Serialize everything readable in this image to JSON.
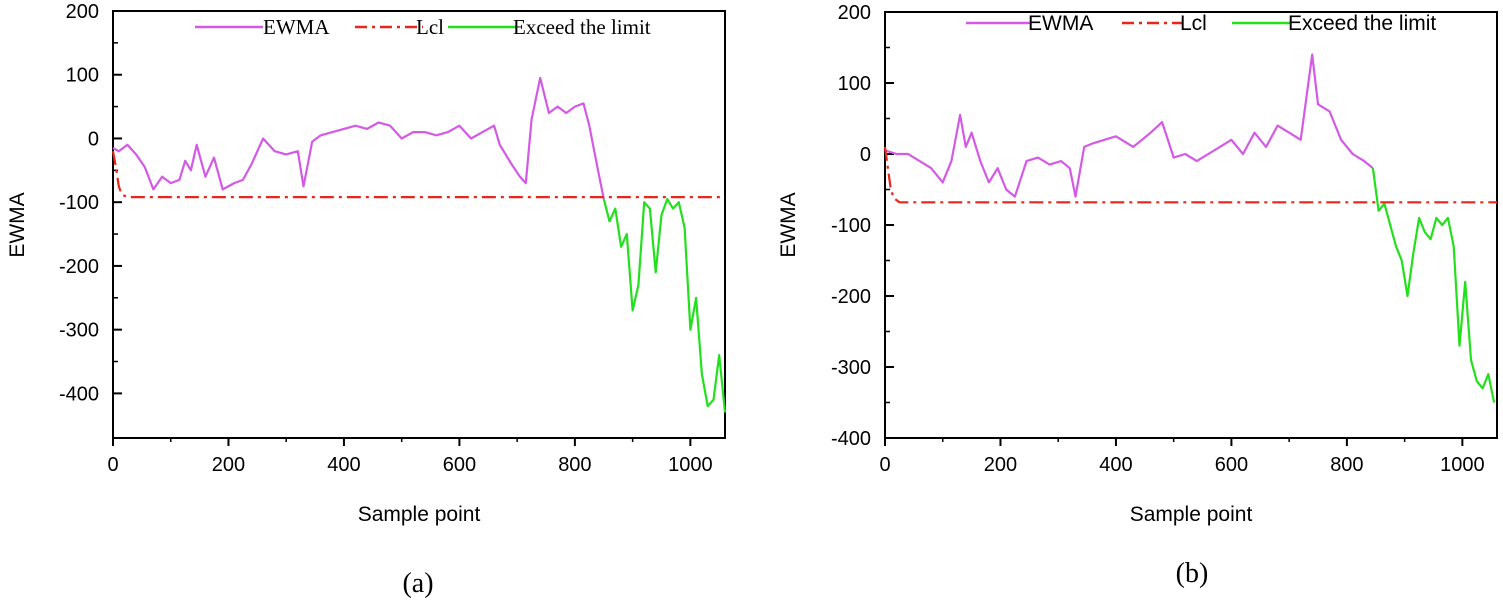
{
  "colors": {
    "ewma": "#d45ae6",
    "lcl": "#e8261c",
    "exceed": "#22e01c",
    "axis": "#000000"
  },
  "chart_data": [
    {
      "type": "line",
      "panel_label": "(a)",
      "xlabel": "Sample point",
      "ylabel": "EWMA",
      "xlim": [
        0,
        1060
      ],
      "ylim": [
        -470,
        200
      ],
      "xticks": [
        0,
        200,
        400,
        600,
        800,
        1000
      ],
      "xtick_labels": [
        "0",
        "200",
        "400",
        "600",
        "800",
        "1000"
      ],
      "yticks": [
        200,
        100,
        0,
        -100,
        -200,
        -300,
        -400
      ],
      "ytick_labels": [
        "200",
        "100",
        "0",
        "-100",
        "-200",
        "-300",
        "-400"
      ],
      "legend": {
        "position": "top-right",
        "entries": [
          "EWMA",
          "Lcl",
          "Exceed the limit"
        ]
      },
      "lcl_value": -92,
      "series": [
        {
          "name": "EWMA",
          "x": [
            0,
            10,
            25,
            40,
            55,
            70,
            85,
            100,
            115,
            125,
            135,
            145,
            160,
            175,
            190,
            210,
            225,
            240,
            260,
            280,
            300,
            320,
            330,
            345,
            360,
            380,
            400,
            420,
            440,
            460,
            480,
            500,
            520,
            540,
            560,
            580,
            600,
            620,
            640,
            660,
            670,
            690,
            705,
            715,
            725,
            740,
            755,
            770,
            785,
            800,
            815,
            825,
            840,
            850
          ],
          "values": [
            -15,
            -20,
            -10,
            -25,
            -45,
            -80,
            -60,
            -70,
            -65,
            -35,
            -50,
            -10,
            -60,
            -30,
            -80,
            -70,
            -65,
            -40,
            0,
            -20,
            -25,
            -20,
            -75,
            -5,
            5,
            10,
            15,
            20,
            15,
            25,
            20,
            0,
            10,
            10,
            5,
            10,
            20,
            0,
            10,
            20,
            -10,
            -40,
            -60,
            -70,
            30,
            95,
            40,
            50,
            40,
            50,
            55,
            20,
            -50,
            -95
          ]
        },
        {
          "name": "Exceed the limit",
          "x": [
            850,
            860,
            870,
            880,
            890,
            900,
            910,
            920,
            930,
            940,
            950,
            960,
            970,
            980,
            990,
            1000,
            1010,
            1020,
            1030,
            1040,
            1050,
            1060
          ],
          "values": [
            -95,
            -130,
            -110,
            -170,
            -150,
            -270,
            -230,
            -100,
            -110,
            -210,
            -120,
            -95,
            -110,
            -100,
            -140,
            -300,
            -250,
            -370,
            -420,
            -410,
            -340,
            -430
          ]
        },
        {
          "name": "Lcl",
          "x": [
            0,
            5,
            10,
            15,
            25,
            1060
          ],
          "values": [
            -20,
            -45,
            -75,
            -88,
            -92,
            -92
          ]
        }
      ]
    },
    {
      "type": "line",
      "panel_label": "(b)",
      "xlabel": "Sample point",
      "ylabel": "EWMA",
      "xlim": [
        0,
        1060
      ],
      "ylim": [
        -400,
        200
      ],
      "xticks": [
        0,
        200,
        400,
        600,
        800,
        1000
      ],
      "xtick_labels": [
        "0",
        "200",
        "400",
        "600",
        "800",
        "1000"
      ],
      "yticks": [
        200,
        100,
        0,
        -100,
        -200,
        -300,
        -400
      ],
      "ytick_labels": [
        "200",
        "100",
        "0",
        "-100",
        "-200",
        "-300",
        "-400"
      ],
      "legend": {
        "position": "top-right",
        "entries": [
          "EWMA",
          "Lcl",
          "Exceed the limit"
        ]
      },
      "lcl_value": -68,
      "series": [
        {
          "name": "EWMA",
          "x": [
            0,
            20,
            40,
            60,
            80,
            100,
            115,
            130,
            140,
            150,
            165,
            180,
            195,
            210,
            225,
            245,
            265,
            285,
            305,
            320,
            330,
            345,
            360,
            380,
            400,
            430,
            460,
            480,
            500,
            520,
            540,
            560,
            580,
            600,
            620,
            640,
            660,
            680,
            700,
            720,
            740,
            750,
            770,
            790,
            810,
            830,
            845
          ],
          "values": [
            5,
            0,
            0,
            -10,
            -20,
            -40,
            -10,
            55,
            10,
            30,
            -10,
            -40,
            -20,
            -50,
            -60,
            -10,
            -5,
            -15,
            -10,
            -20,
            -60,
            10,
            15,
            20,
            25,
            10,
            30,
            45,
            -5,
            0,
            -10,
            0,
            10,
            20,
            0,
            30,
            10,
            40,
            30,
            20,
            140,
            70,
            60,
            20,
            0,
            -10,
            -20
          ]
        },
        {
          "name": "Exceed the limit",
          "x": [
            845,
            855,
            865,
            875,
            885,
            895,
            905,
            915,
            925,
            935,
            945,
            955,
            965,
            975,
            985,
            995,
            1005,
            1015,
            1025,
            1035,
            1045,
            1055
          ],
          "values": [
            -20,
            -80,
            -70,
            -100,
            -130,
            -150,
            -200,
            -140,
            -90,
            -110,
            -120,
            -90,
            -100,
            -90,
            -130,
            -270,
            -180,
            -290,
            -320,
            -330,
            -310,
            -350
          ]
        },
        {
          "name": "Lcl",
          "x": [
            0,
            5,
            10,
            15,
            25,
            1060
          ],
          "values": [
            10,
            -20,
            -50,
            -62,
            -68,
            -68
          ]
        }
      ]
    }
  ]
}
